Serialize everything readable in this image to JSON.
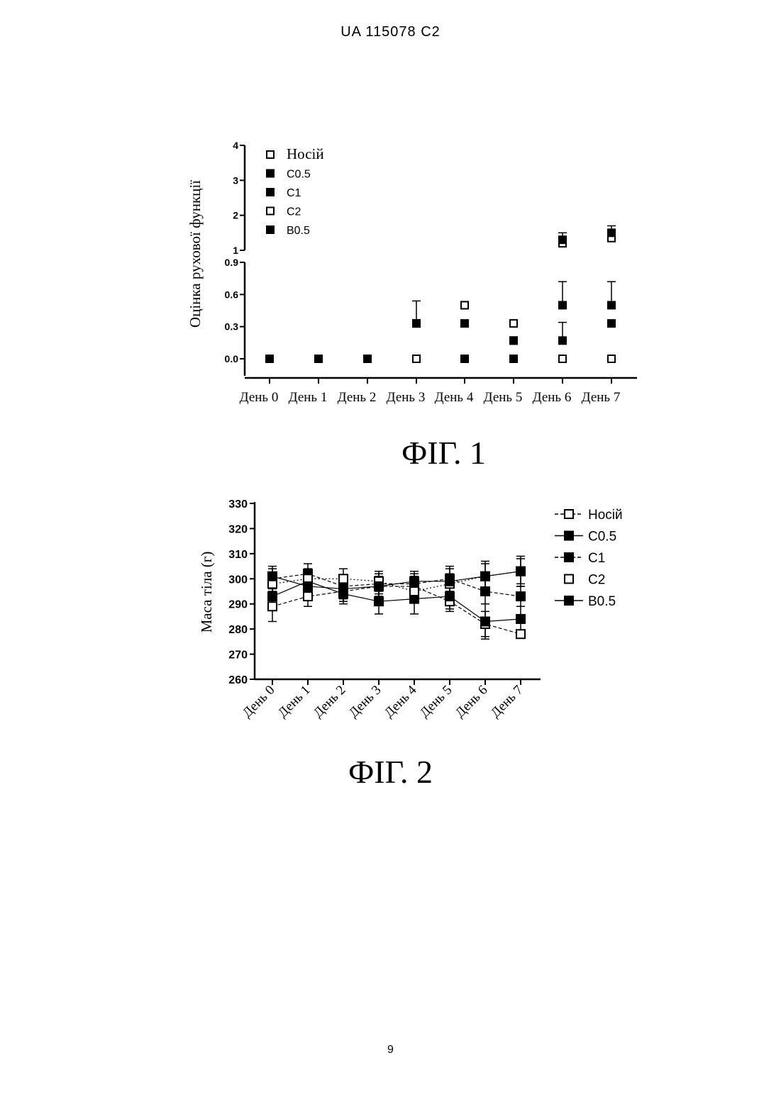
{
  "header": {
    "doc_id": "UA   115078   C2"
  },
  "page_number": "9",
  "figures": [
    {
      "caption": "ФІГ. 1"
    },
    {
      "caption": "ФІГ. 2"
    }
  ],
  "chart_data": [
    {
      "type": "scatter",
      "ylabel": "Оцінка рухової функції",
      "xlabel": "",
      "categories": [
        "День 0",
        "День 1",
        "День 2",
        "День 3",
        "День 4",
        "День 5",
        "День 6",
        "День 7"
      ],
      "y_axis_broken": true,
      "y_ticks_lower": [
        "0.0",
        "0.3",
        "0.6",
        "0.9"
      ],
      "y_ticks_upper": [
        "1",
        "2",
        "3",
        "4"
      ],
      "ylim_lower": [
        0,
        0.9
      ],
      "ylim_upper": [
        1,
        4
      ],
      "legend_position": "top-left",
      "series": [
        {
          "name": "Носій",
          "marker": "open",
          "values": [
            0,
            0,
            0,
            0,
            0,
            0,
            0,
            0
          ]
        },
        {
          "name": "C0.5",
          "marker": "filled",
          "values": [
            0,
            0,
            0,
            0.33,
            0.33,
            0.17,
            0.17,
            0.33
          ],
          "err": [
            0,
            0,
            0,
            0,
            0,
            0,
            0.17,
            0
          ]
        },
        {
          "name": "C1",
          "marker": "filled",
          "values": [
            0,
            0,
            0,
            0,
            0.5,
            0,
            0.5,
            0.5
          ],
          "err": [
            0,
            0,
            0,
            0,
            0,
            0,
            0.22,
            0.22
          ]
        },
        {
          "name": "C2",
          "marker": "open",
          "values": [
            0,
            0,
            0,
            0,
            0.5,
            0.33,
            1.2,
            1.35
          ]
        },
        {
          "name": "B0.5",
          "marker": "filled",
          "values": [
            0,
            0,
            0,
            0.33,
            0,
            0.17,
            1.3,
            1.5
          ],
          "err": [
            0,
            0,
            0,
            0.21,
            0,
            0,
            0.2,
            0.2
          ]
        }
      ]
    },
    {
      "type": "line",
      "ylabel": "Маса тіла (г)",
      "xlabel": "",
      "categories": [
        "День 0",
        "День 1",
        "День 2",
        "День 3",
        "День 4",
        "День 5",
        "День 6",
        "День 7"
      ],
      "y_ticks": [
        "260",
        "270",
        "280",
        "290",
        "300",
        "310",
        "320",
        "330"
      ],
      "ylim": [
        260,
        330
      ],
      "legend_position": "right",
      "series": [
        {
          "name": "Носій",
          "marker": "open",
          "line": "dashed",
          "values": [
            289,
            293,
            295,
            297,
            297,
            291,
            282,
            278
          ],
          "err": [
            6,
            4,
            4,
            4,
            4,
            4,
            5,
            1
          ]
        },
        {
          "name": "C0.5",
          "marker": "filled",
          "line": "solid",
          "values": [
            293,
            299,
            294,
            291,
            292,
            293,
            283,
            284
          ],
          "err": [
            4,
            4,
            4,
            5,
            6,
            5,
            7,
            5
          ]
        },
        {
          "name": "C1",
          "marker": "filled",
          "line": "dashed",
          "values": [
            300,
            302,
            297,
            298,
            298,
            300,
            295,
            293
          ],
          "err": [
            4,
            4,
            4,
            4,
            4,
            5,
            5,
            4
          ]
        },
        {
          "name": "C2",
          "marker": "open",
          "line": "dotted",
          "values": [
            298,
            300,
            300,
            299,
            295,
            298,
            301,
            303
          ],
          "err": [
            4,
            4,
            4,
            4,
            4,
            4,
            5,
            5
          ]
        },
        {
          "name": "B0.5",
          "marker": "filled",
          "line": "solid",
          "values": [
            301,
            297,
            296,
            297,
            299,
            299,
            301,
            303
          ],
          "err": [
            4,
            4,
            4,
            4,
            4,
            5,
            6,
            6
          ]
        }
      ]
    }
  ]
}
